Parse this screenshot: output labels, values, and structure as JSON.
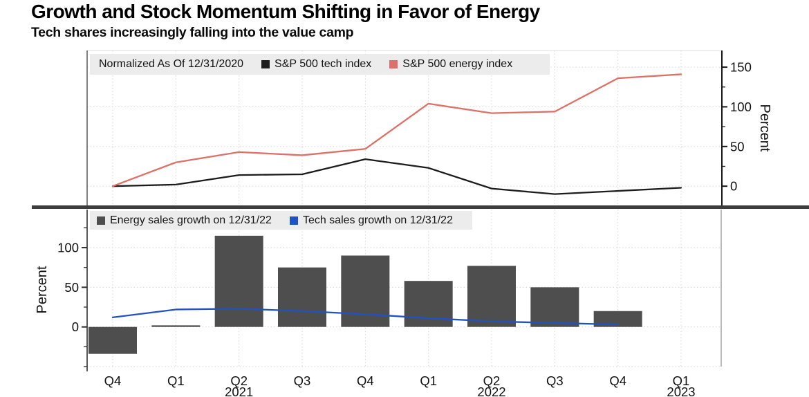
{
  "header": {
    "title": "Growth and Stock Momentum Shifting in Favor of Energy",
    "subtitle": "Tech shares increasingly falling into the value camp"
  },
  "colors": {
    "tech_index": "#1c1c1c",
    "energy_index": "#dd7067",
    "energy_sales": "#4e4e4e",
    "tech_sales": "#2152c3",
    "legend_bg": "#ececec",
    "divider": "#3d3d3d",
    "grid": "#d6d6d6",
    "axis": "#2b2b2b",
    "plot_border": "#8c8c8c"
  },
  "x_axis": {
    "quarters": [
      "Q4",
      "Q1",
      "Q2",
      "Q3",
      "Q4",
      "Q1",
      "Q2",
      "Q3",
      "Q4",
      "Q1"
    ],
    "years": [
      "",
      "",
      "2021",
      "",
      "",
      "",
      "2022",
      "",
      "",
      "2023"
    ]
  },
  "chart_data": [
    {
      "type": "line",
      "note": "Normalized As Of 12/31/2020",
      "ylabel": "Percent",
      "ylim": [
        -26,
        171
      ],
      "y_ticks": [
        0,
        50,
        100,
        150
      ],
      "y_minor_ticks": [
        25,
        75,
        125
      ],
      "grid_values": [
        0,
        50,
        100,
        150
      ],
      "y_axis_side": "right",
      "grid": true,
      "legend_position": "top-left",
      "x": [
        "Q4 2020",
        "Q1 2021",
        "Q2 2021",
        "Q3 2021",
        "Q4 2021",
        "Q1 2022",
        "Q2 2022",
        "Q3 2022",
        "Q4 2022",
        "Q1 2023"
      ],
      "series": [
        {
          "name": "S&P 500 tech index",
          "type": "line",
          "color_key": "tech_index",
          "values": [
            0,
            2,
            14,
            15,
            34,
            23,
            -3,
            -10,
            -6,
            -2
          ]
        },
        {
          "name": "S&P 500 energy index",
          "type": "line",
          "color_key": "energy_index",
          "values": [
            0,
            30,
            43,
            39,
            47,
            104,
            92,
            94,
            136,
            141
          ]
        }
      ]
    },
    {
      "type": "bar+line",
      "ylabel": "Percent",
      "ylim": [
        -50,
        148
      ],
      "y_ticks": [
        0,
        50,
        100
      ],
      "y_minor_ticks": [
        -50,
        -25,
        25,
        75,
        125
      ],
      "grid_values": [
        -50,
        0,
        50,
        100
      ],
      "y_axis_side": "left",
      "grid": true,
      "legend_position": "top-left",
      "x": [
        "Q4 2020",
        "Q1 2021",
        "Q2 2021",
        "Q3 2021",
        "Q4 2021",
        "Q1 2022",
        "Q2 2022",
        "Q3 2022",
        "Q4 2022",
        "Q1 2023"
      ],
      "series": [
        {
          "name": "Energy sales growth on 12/31/22",
          "type": "bar",
          "color_key": "energy_sales",
          "values": [
            -34,
            2,
            115,
            75,
            90,
            58,
            77,
            50,
            20,
            null
          ]
        },
        {
          "name": "Tech sales growth on 12/31/22",
          "type": "line",
          "color_key": "tech_sales",
          "values": [
            12,
            22,
            23,
            20,
            16,
            11,
            7,
            5,
            3,
            null
          ]
        }
      ]
    }
  ]
}
